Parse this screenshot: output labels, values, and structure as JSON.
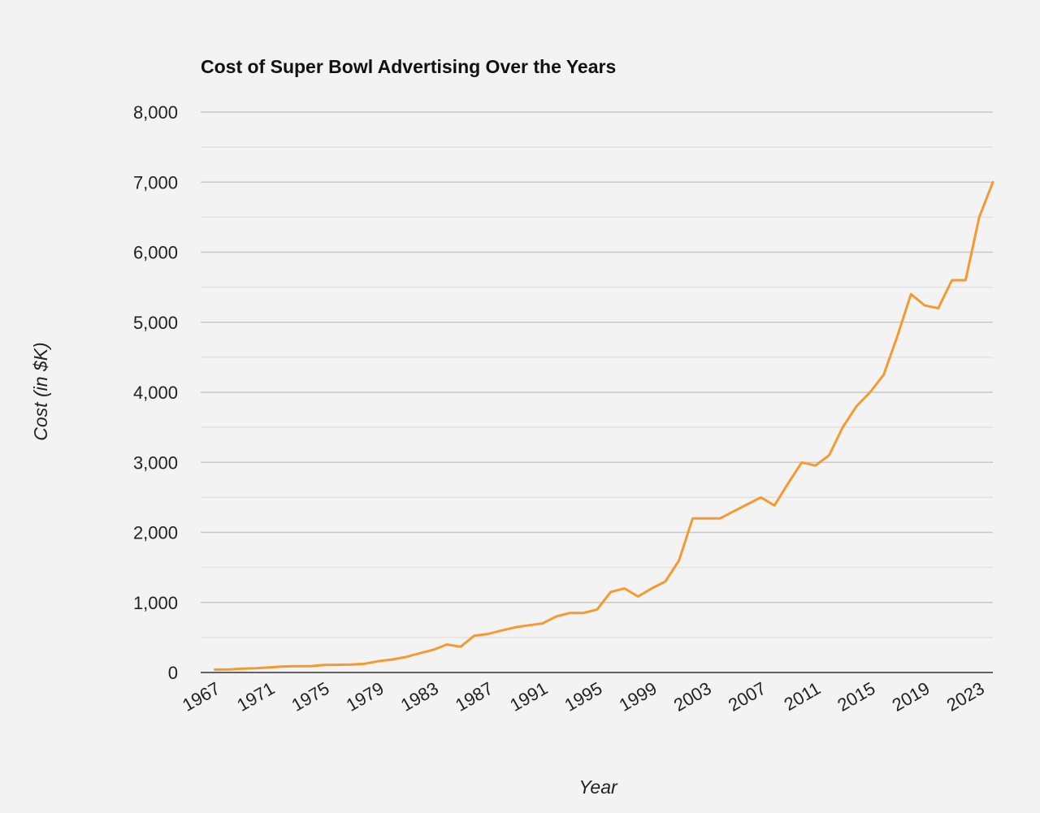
{
  "chart_data": {
    "type": "line",
    "title": "Cost of Super Bowl Advertising Over the Years",
    "xlabel": "Year",
    "ylabel": "Cost (in $K)",
    "ylim": [
      0,
      8000
    ],
    "xlim": [
      1967,
      2024
    ],
    "y_ticks": [
      0,
      1000,
      2000,
      3000,
      4000,
      5000,
      6000,
      7000,
      8000
    ],
    "y_tick_labels": [
      "0",
      "1,000",
      "2,000",
      "3,000",
      "4,000",
      "5,000",
      "6,000",
      "7,000",
      "8,000"
    ],
    "x_ticks": [
      1967,
      1971,
      1975,
      1979,
      1983,
      1987,
      1991,
      1995,
      1999,
      2003,
      2007,
      2011,
      2015,
      2019,
      2023
    ],
    "x_tick_labels": [
      "1967",
      "1971",
      "1975",
      "1979",
      "1983",
      "1987",
      "1991",
      "1995",
      "1999",
      "2003",
      "2007",
      "2011",
      "2015",
      "2019",
      "2023"
    ],
    "grid": true,
    "legend": "none",
    "series": [
      {
        "name": "Cost",
        "color": "#f59a30",
        "x": [
          1967,
          1968,
          1969,
          1970,
          1971,
          1972,
          1973,
          1974,
          1975,
          1976,
          1977,
          1978,
          1979,
          1980,
          1981,
          1982,
          1983,
          1984,
          1985,
          1986,
          1987,
          1988,
          1989,
          1990,
          1991,
          1992,
          1993,
          1994,
          1995,
          1996,
          1997,
          1998,
          1999,
          2000,
          2001,
          2002,
          2003,
          2004,
          2005,
          2006,
          2007,
          2008,
          2009,
          2010,
          2011,
          2012,
          2013,
          2014,
          2015,
          2016,
          2017,
          2018,
          2019,
          2020,
          2021,
          2022,
          2023,
          2024
        ],
        "values": [
          42,
          42,
          55,
          60,
          72,
          86,
          90,
          90,
          107,
          110,
          112,
          125,
          162,
          185,
          222,
          275,
          324,
          400,
          368,
          525,
          550,
          600,
          645,
          675,
          700,
          800,
          850,
          850,
          900,
          1150,
          1200,
          1085,
          1200,
          1300,
          1600,
          2200,
          2200,
          2200,
          2300,
          2400,
          2500,
          2385,
          2700,
          3000,
          2954,
          3100,
          3500,
          3800,
          4000,
          4250,
          4800,
          5400,
          5240,
          5200,
          5600,
          5600,
          6500,
          7000
        ]
      }
    ]
  }
}
